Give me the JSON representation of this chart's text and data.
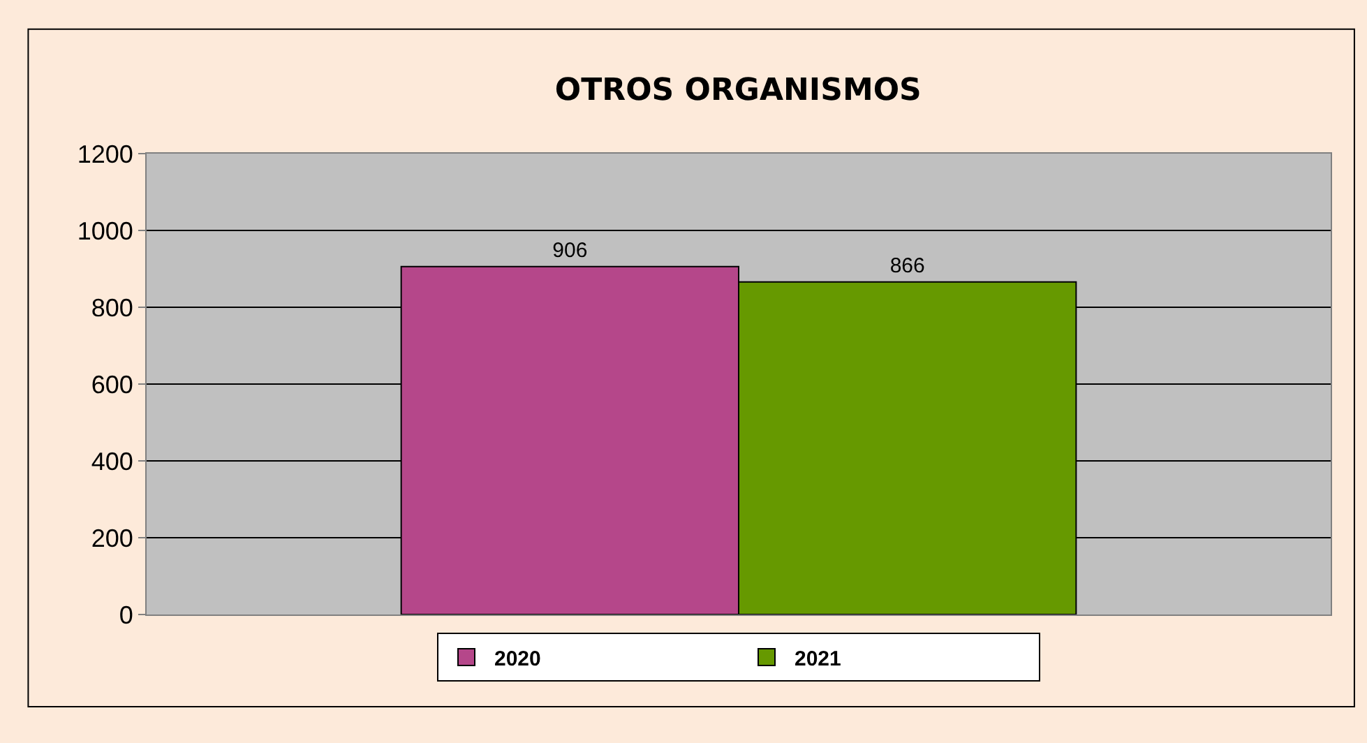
{
  "chart_data": {
    "type": "bar",
    "title": "OTROS ORGANISMOS",
    "categories": [
      null
    ],
    "series": [
      {
        "name": "2020",
        "color": "#b5478a",
        "values": [
          906
        ]
      },
      {
        "name": "2021",
        "color": "#669900",
        "values": [
          866
        ]
      }
    ],
    "ylim": [
      0,
      1200
    ],
    "yticks": [
      0,
      200,
      400,
      600,
      800,
      1000,
      1200
    ],
    "grid": "y",
    "legend": "bottom",
    "data_labels": true,
    "tick_labels": "y"
  }
}
